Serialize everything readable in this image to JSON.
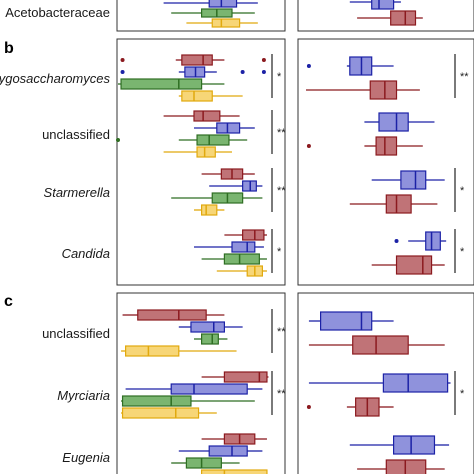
{
  "colors": {
    "red": "#b55a5f",
    "red_line": "#8b1a1f",
    "blue": "#7b7fd6",
    "blue_line": "#1c22a6",
    "green": "#63a857",
    "green_line": "#2f6e23",
    "yellow": "#f6cf5f",
    "yellow_line": "#e1a90e",
    "frame": "#333333",
    "text": "#1a1a1a"
  },
  "chart_data": {
    "type": "boxplot",
    "note_units": "Axes carry no printed tick labels; values are read relative to the left panel (0-1) and right panel (0-1) visible extents.",
    "panels": [
      {
        "letter": "",
        "groups": [
          {
            "label": "Acetobacteraceae",
            "italic": false,
            "left": {
              "sig": "",
              "boxes": [
                {
                  "color": "blue",
                  "min": 0.3,
                  "q1": 0.6,
                  "med": 0.68,
                  "q3": 0.78,
                  "max": 0.92,
                  "outliers": []
                },
                {
                  "color": "green",
                  "min": 0.35,
                  "q1": 0.55,
                  "med": 0.65,
                  "q3": 0.75,
                  "max": 0.9,
                  "outliers": []
                },
                {
                  "color": "yellow",
                  "min": 0.45,
                  "q1": 0.62,
                  "med": 0.68,
                  "q3": 0.8,
                  "max": 0.92,
                  "outliers": []
                }
              ]
            },
            "right": {
              "sig": "",
              "boxes": [
                {
                  "color": "blue",
                  "min": 0.3,
                  "q1": 0.45,
                  "med": 0.5,
                  "q3": 0.6,
                  "max": 0.65,
                  "outliers": []
                },
                {
                  "color": "red",
                  "min": 0.35,
                  "q1": 0.58,
                  "med": 0.68,
                  "q3": 0.75,
                  "max": 0.8,
                  "outliers": []
                }
              ]
            }
          }
        ]
      },
      {
        "letter": "b",
        "groups": [
          {
            "label": "Zygosaccharomyces",
            "italic": true,
            "left": {
              "sig": "*",
              "boxes": [
                {
                  "color": "red",
                  "min": 0.38,
                  "q1": 0.42,
                  "med": 0.56,
                  "q3": 0.62,
                  "max": 0.7,
                  "outliers": [
                    0.03,
                    0.96
                  ]
                },
                {
                  "color": "blue",
                  "min": 0.4,
                  "q1": 0.44,
                  "med": 0.51,
                  "q3": 0.57,
                  "max": 0.65,
                  "outliers": [
                    0.03,
                    0.82,
                    0.96
                  ]
                },
                {
                  "color": "green",
                  "min": 0.0,
                  "q1": 0.02,
                  "med": 0.4,
                  "q3": 0.55,
                  "max": 0.7,
                  "outliers": []
                },
                {
                  "color": "yellow",
                  "min": 0.4,
                  "q1": 0.42,
                  "med": 0.5,
                  "q3": 0.62,
                  "max": 0.82,
                  "outliers": []
                }
              ]
            },
            "right": {
              "sig": "**",
              "boxes": [
                {
                  "color": "blue",
                  "min": 0.28,
                  "q1": 0.3,
                  "med": 0.38,
                  "q3": 0.45,
                  "max": 0.6,
                  "outliers": [
                    0.02
                  ]
                },
                {
                  "color": "red",
                  "min": 0.0,
                  "q1": 0.44,
                  "med": 0.54,
                  "q3": 0.62,
                  "max": 0.78,
                  "outliers": []
                }
              ]
            }
          },
          {
            "label": "unclassified",
            "italic": false,
            "left": {
              "sig": "**",
              "boxes": [
                {
                  "color": "red",
                  "min": 0.3,
                  "q1": 0.5,
                  "med": 0.56,
                  "q3": 0.67,
                  "max": 0.8,
                  "outliers": []
                },
                {
                  "color": "blue",
                  "min": 0.5,
                  "q1": 0.65,
                  "med": 0.72,
                  "q3": 0.8,
                  "max": 0.9,
                  "outliers": []
                },
                {
                  "color": "green",
                  "min": 0.4,
                  "q1": 0.52,
                  "med": 0.6,
                  "q3": 0.73,
                  "max": 0.85,
                  "outliers": [
                    0.0
                  ]
                },
                {
                  "color": "yellow",
                  "min": 0.3,
                  "q1": 0.52,
                  "med": 0.57,
                  "q3": 0.64,
                  "max": 0.75,
                  "outliers": []
                }
              ]
            },
            "right": {
              "sig": "",
              "boxes": [
                {
                  "color": "blue",
                  "min": 0.4,
                  "q1": 0.5,
                  "med": 0.62,
                  "q3": 0.7,
                  "max": 0.88,
                  "outliers": []
                },
                {
                  "color": "red",
                  "min": 0.4,
                  "q1": 0.48,
                  "med": 0.54,
                  "q3": 0.62,
                  "max": 0.8,
                  "outliers": [
                    0.02
                  ]
                }
              ]
            }
          },
          {
            "label": "Starmerella",
            "italic": true,
            "left": {
              "sig": "**",
              "boxes": [
                {
                  "color": "red",
                  "min": 0.55,
                  "q1": 0.68,
                  "med": 0.75,
                  "q3": 0.82,
                  "max": 0.9,
                  "outliers": []
                },
                {
                  "color": "blue",
                  "min": 0.6,
                  "q1": 0.82,
                  "med": 0.87,
                  "q3": 0.91,
                  "max": 0.95,
                  "outliers": []
                },
                {
                  "color": "green",
                  "min": 0.35,
                  "q1": 0.62,
                  "med": 0.72,
                  "q3": 0.82,
                  "max": 0.95,
                  "outliers": []
                },
                {
                  "color": "yellow",
                  "min": 0.5,
                  "q1": 0.55,
                  "med": 0.58,
                  "q3": 0.65,
                  "max": 0.7,
                  "outliers": []
                }
              ]
            },
            "right": {
              "sig": "*",
              "boxes": [
                {
                  "color": "blue",
                  "min": 0.45,
                  "q1": 0.65,
                  "med": 0.75,
                  "q3": 0.82,
                  "max": 0.95,
                  "outliers": []
                },
                {
                  "color": "red",
                  "min": 0.3,
                  "q1": 0.55,
                  "med": 0.62,
                  "q3": 0.72,
                  "max": 0.9,
                  "outliers": []
                }
              ]
            }
          },
          {
            "label": "Candida",
            "italic": true,
            "left": {
              "sig": "*",
              "boxes": [
                {
                  "color": "red",
                  "min": 0.7,
                  "q1": 0.82,
                  "med": 0.9,
                  "q3": 0.96,
                  "max": 0.98,
                  "outliers": []
                },
                {
                  "color": "blue",
                  "min": 0.5,
                  "q1": 0.75,
                  "med": 0.85,
                  "q3": 0.9,
                  "max": 0.96,
                  "outliers": []
                },
                {
                  "color": "green",
                  "min": 0.55,
                  "q1": 0.7,
                  "med": 0.8,
                  "q3": 0.93,
                  "max": 0.98,
                  "outliers": []
                },
                {
                  "color": "yellow",
                  "min": 0.65,
                  "q1": 0.85,
                  "med": 0.9,
                  "q3": 0.95,
                  "max": 0.98,
                  "outliers": []
                }
              ]
            },
            "right": {
              "sig": "*",
              "boxes": [
                {
                  "color": "blue",
                  "min": 0.7,
                  "q1": 0.82,
                  "med": 0.86,
                  "q3": 0.92,
                  "max": 0.96,
                  "outliers": [
                    0.62
                  ]
                },
                {
                  "color": "red",
                  "min": 0.45,
                  "q1": 0.62,
                  "med": 0.8,
                  "q3": 0.86,
                  "max": 0.95,
                  "outliers": []
                }
              ]
            }
          }
        ]
      },
      {
        "letter": "c",
        "groups": [
          {
            "label": "unclassified",
            "italic": false,
            "left": {
              "sig": "**",
              "boxes": [
                {
                  "color": "red",
                  "min": 0.03,
                  "q1": 0.13,
                  "med": 0.4,
                  "q3": 0.58,
                  "max": 0.7,
                  "outliers": []
                },
                {
                  "color": "blue",
                  "min": 0.4,
                  "q1": 0.48,
                  "med": 0.63,
                  "q3": 0.7,
                  "max": 0.82,
                  "outliers": []
                },
                {
                  "color": "green",
                  "min": 0.5,
                  "q1": 0.55,
                  "med": 0.62,
                  "q3": 0.66,
                  "max": 0.72,
                  "outliers": []
                },
                {
                  "color": "yellow",
                  "min": 0.02,
                  "q1": 0.05,
                  "med": 0.2,
                  "q3": 0.4,
                  "max": 0.78,
                  "outliers": []
                }
              ]
            },
            "right": {
              "sig": "",
              "boxes": [
                {
                  "color": "blue",
                  "min": 0.02,
                  "q1": 0.1,
                  "med": 0.38,
                  "q3": 0.45,
                  "max": 0.6,
                  "outliers": []
                },
                {
                  "color": "red",
                  "min": 0.02,
                  "q1": 0.32,
                  "med": 0.48,
                  "q3": 0.7,
                  "max": 0.95,
                  "outliers": []
                }
              ]
            }
          },
          {
            "label": "Myrciaria",
            "italic": true,
            "left": {
              "sig": "**",
              "boxes": [
                {
                  "color": "red",
                  "min": 0.55,
                  "q1": 0.7,
                  "med": 0.93,
                  "q3": 0.98,
                  "max": 0.99,
                  "outliers": []
                },
                {
                  "color": "blue",
                  "min": 0.05,
                  "q1": 0.35,
                  "med": 0.5,
                  "q3": 0.85,
                  "max": 0.95,
                  "outliers": []
                },
                {
                  "color": "green",
                  "min": 0.02,
                  "q1": 0.03,
                  "med": 0.35,
                  "q3": 0.48,
                  "max": 0.9,
                  "outliers": []
                },
                {
                  "color": "yellow",
                  "min": 0.02,
                  "q1": 0.03,
                  "med": 0.38,
                  "q3": 0.53,
                  "max": 0.65,
                  "outliers": []
                }
              ]
            },
            "right": {
              "sig": "*",
              "boxes": [
                {
                  "color": "blue",
                  "min": 0.02,
                  "q1": 0.53,
                  "med": 0.7,
                  "q3": 0.97,
                  "max": 0.99,
                  "outliers": []
                },
                {
                  "color": "red",
                  "min": 0.28,
                  "q1": 0.34,
                  "med": 0.42,
                  "q3": 0.5,
                  "max": 0.6,
                  "outliers": [
                    0.02
                  ]
                }
              ]
            }
          },
          {
            "label": "Eugenia",
            "italic": true,
            "left": {
              "sig": "",
              "boxes": [
                {
                  "color": "red",
                  "min": 0.55,
                  "q1": 0.7,
                  "med": 0.8,
                  "q3": 0.9,
                  "max": 0.98,
                  "outliers": []
                },
                {
                  "color": "blue",
                  "min": 0.4,
                  "q1": 0.6,
                  "med": 0.75,
                  "q3": 0.85,
                  "max": 0.95,
                  "outliers": []
                },
                {
                  "color": "green",
                  "min": 0.35,
                  "q1": 0.45,
                  "med": 0.55,
                  "q3": 0.68,
                  "max": 0.8,
                  "outliers": []
                },
                {
                  "color": "yellow",
                  "min": 0.4,
                  "q1": 0.55,
                  "med": 0.7,
                  "q3": 0.98,
                  "max": 0.99,
                  "outliers": []
                }
              ]
            },
            "right": {
              "sig": "",
              "boxes": [
                {
                  "color": "blue",
                  "min": 0.3,
                  "q1": 0.6,
                  "med": 0.72,
                  "q3": 0.88,
                  "max": 0.98,
                  "outliers": []
                },
                {
                  "color": "red",
                  "min": 0.35,
                  "q1": 0.55,
                  "med": 0.68,
                  "q3": 0.82,
                  "max": 0.95,
                  "outliers": []
                }
              ]
            }
          }
        ]
      }
    ]
  }
}
